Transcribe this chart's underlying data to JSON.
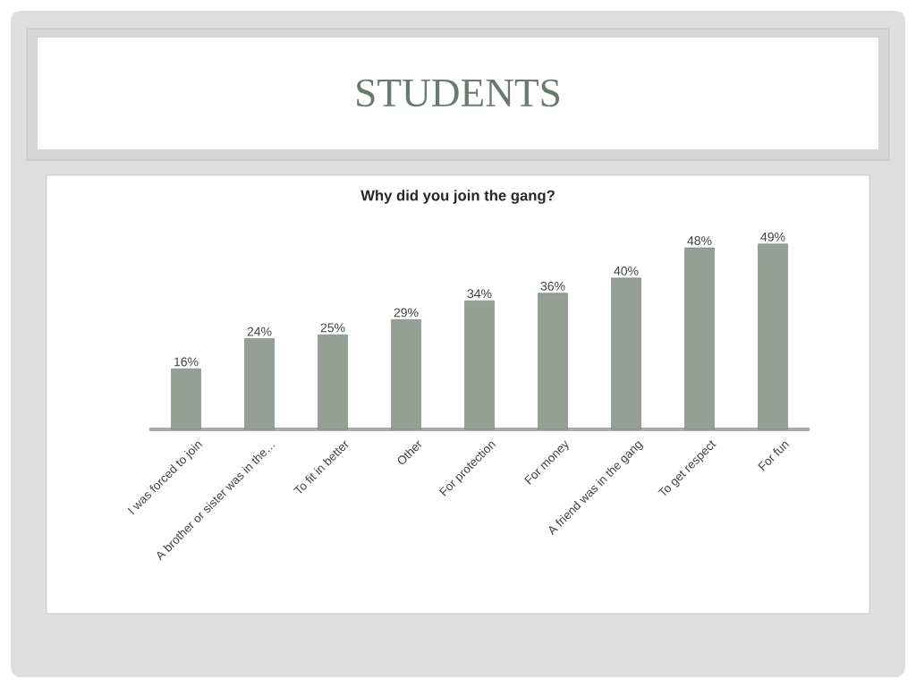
{
  "chart_data": {
    "type": "bar",
    "title": "STUDENTS",
    "subtitle": "Why did you join the gang?",
    "categories": [
      "I was forced to join",
      "A brother or sister was in the…",
      "To fit in better",
      "Other",
      "For protection",
      "For money",
      "A friend was in the gang",
      "To get respect",
      "For fun"
    ],
    "values": [
      16,
      24,
      25,
      29,
      34,
      36,
      40,
      48,
      49
    ],
    "value_labels": [
      "16%",
      "24%",
      "25%",
      "29%",
      "34%",
      "36%",
      "40%",
      "48%",
      "49%"
    ],
    "color": "#949f96"
  }
}
